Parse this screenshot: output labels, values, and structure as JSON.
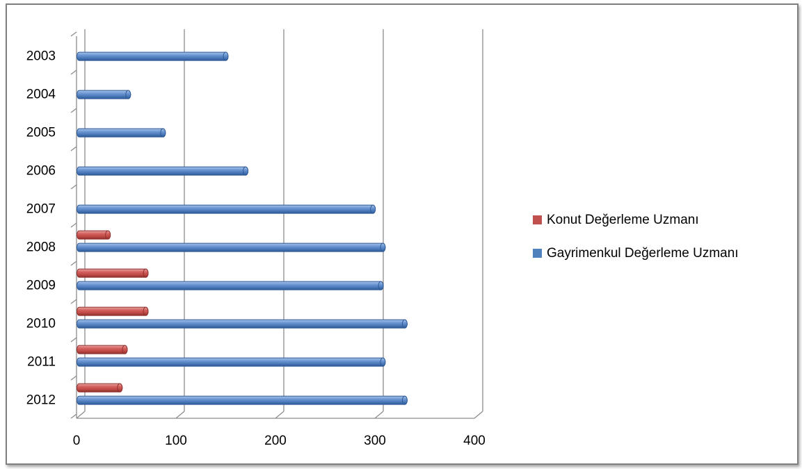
{
  "chart_data": {
    "type": "bar",
    "orientation": "horizontal",
    "style": "3d-cylinder",
    "categories": [
      "2003",
      "2004",
      "2005",
      "2006",
      "2007",
      "2008",
      "2009",
      "2010",
      "2011",
      "2012"
    ],
    "series": [
      {
        "name": "Konut Değerleme Uzmanı",
        "color": "#c0504d",
        "values": [
          0,
          0,
          0,
          0,
          0,
          26,
          64,
          64,
          43,
          38
        ]
      },
      {
        "name": "Gayrimenkul Değerleme Uzmanı",
        "color": "#4f81bd",
        "values": [
          143,
          45,
          80,
          163,
          291,
          301,
          299,
          323,
          301,
          323
        ]
      }
    ],
    "xlim": [
      0,
      400
    ],
    "x_ticks": [
      "0",
      "100",
      "200",
      "300",
      "400"
    ],
    "grid": true,
    "legend_position": "right"
  }
}
